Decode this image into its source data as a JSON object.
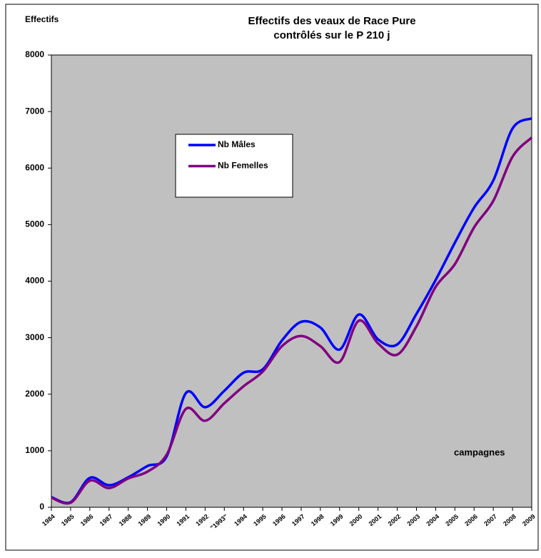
{
  "chart_data": {
    "type": "line",
    "title": "Effectifs des veaux de Race Pure",
    "subtitle": "contrôlés sur le P 210 j",
    "y_label": "Effectifs",
    "annotation": "campagnes",
    "categories": [
      "1984",
      "1985",
      "1986",
      "1987",
      "1988",
      "1989",
      "1990",
      "1991",
      "1992",
      "\"1993\"",
      "1994",
      "1995",
      "1996",
      "1997",
      "1998",
      "1999",
      "2000",
      "2001",
      "2002",
      "2003",
      "2004",
      "2005",
      "2006",
      "2007",
      "2008",
      "2009"
    ],
    "series": [
      {
        "name": "Nb Mâles",
        "color": "#0000ff",
        "values": [
          180,
          90,
          520,
          390,
          530,
          730,
          900,
          2020,
          1770,
          2060,
          2380,
          2440,
          2950,
          3280,
          3180,
          2790,
          3410,
          2970,
          2880,
          3420,
          4020,
          4680,
          5300,
          5780,
          6700,
          6880
        ]
      },
      {
        "name": "Nb Femelles",
        "color": "#800080",
        "values": [
          170,
          80,
          470,
          340,
          510,
          630,
          930,
          1740,
          1530,
          1840,
          2140,
          2400,
          2850,
          3030,
          2850,
          2570,
          3300,
          2900,
          2700,
          3200,
          3900,
          4300,
          4950,
          5420,
          6200,
          6540
        ]
      }
    ],
    "ylim": [
      0,
      8000
    ],
    "yticks": [
      0,
      1000,
      2000,
      3000,
      4000,
      5000,
      6000,
      7000,
      8000
    ],
    "grid": false,
    "plot_color": "#c0c0c0"
  }
}
